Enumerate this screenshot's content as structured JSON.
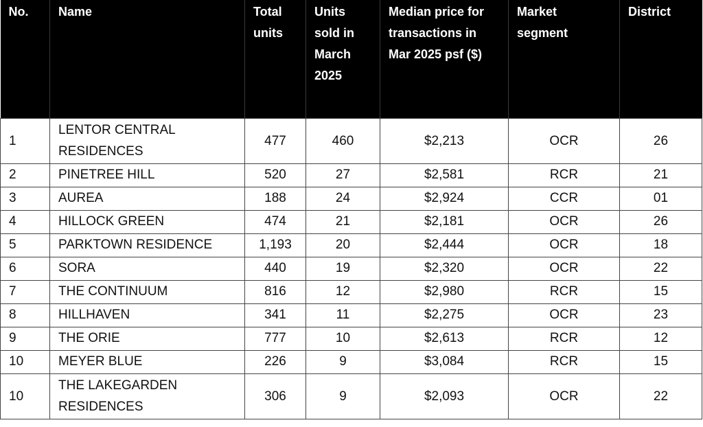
{
  "columns": [
    "No.",
    "Name",
    "Total units",
    "Units sold in March 2025",
    "Median price for transactions in Mar 2025 psf ($)",
    "Market segment",
    "District"
  ],
  "rows": [
    {
      "no": "1",
      "name": "LENTOR CENTRAL RESIDENCES",
      "total_units": "477",
      "units_sold": "460",
      "median_price": "$2,213",
      "segment": "OCR",
      "district": "26"
    },
    {
      "no": "2",
      "name": "PINETREE HILL",
      "total_units": "520",
      "units_sold": "27",
      "median_price": "$2,581",
      "segment": "RCR",
      "district": "21"
    },
    {
      "no": "3",
      "name": "AUREA",
      "total_units": "188",
      "units_sold": "24",
      "median_price": "$2,924",
      "segment": "CCR",
      "district": "01"
    },
    {
      "no": "4",
      "name": "HILLOCK GREEN",
      "total_units": "474",
      "units_sold": "21",
      "median_price": "$2,181",
      "segment": "OCR",
      "district": "26"
    },
    {
      "no": "5",
      "name": "PARKTOWN RESIDENCE",
      "total_units": "1,193",
      "units_sold": "20",
      "median_price": "$2,444",
      "segment": "OCR",
      "district": "18"
    },
    {
      "no": "6",
      "name": "SORA",
      "total_units": "440",
      "units_sold": "19",
      "median_price": "$2,320",
      "segment": "OCR",
      "district": "22"
    },
    {
      "no": "7",
      "name": "THE CONTINUUM",
      "total_units": "816",
      "units_sold": "12",
      "median_price": "$2,980",
      "segment": "RCR",
      "district": "15"
    },
    {
      "no": "8",
      "name": "HILLHAVEN",
      "total_units": "341",
      "units_sold": "11",
      "median_price": "$2,275",
      "segment": "OCR",
      "district": "23"
    },
    {
      "no": "9",
      "name": "THE ORIE",
      "total_units": "777",
      "units_sold": "10",
      "median_price": "$2,613",
      "segment": "RCR",
      "district": "12"
    },
    {
      "no": "10",
      "name": "MEYER BLUE",
      "total_units": "226",
      "units_sold": "9",
      "median_price": "$3,084",
      "segment": "RCR",
      "district": "15"
    },
    {
      "no": "10",
      "name": "THE LAKEGARDEN RESIDENCES",
      "total_units": "306",
      "units_sold": "9",
      "median_price": "$2,093",
      "segment": "OCR",
      "district": "22"
    }
  ]
}
